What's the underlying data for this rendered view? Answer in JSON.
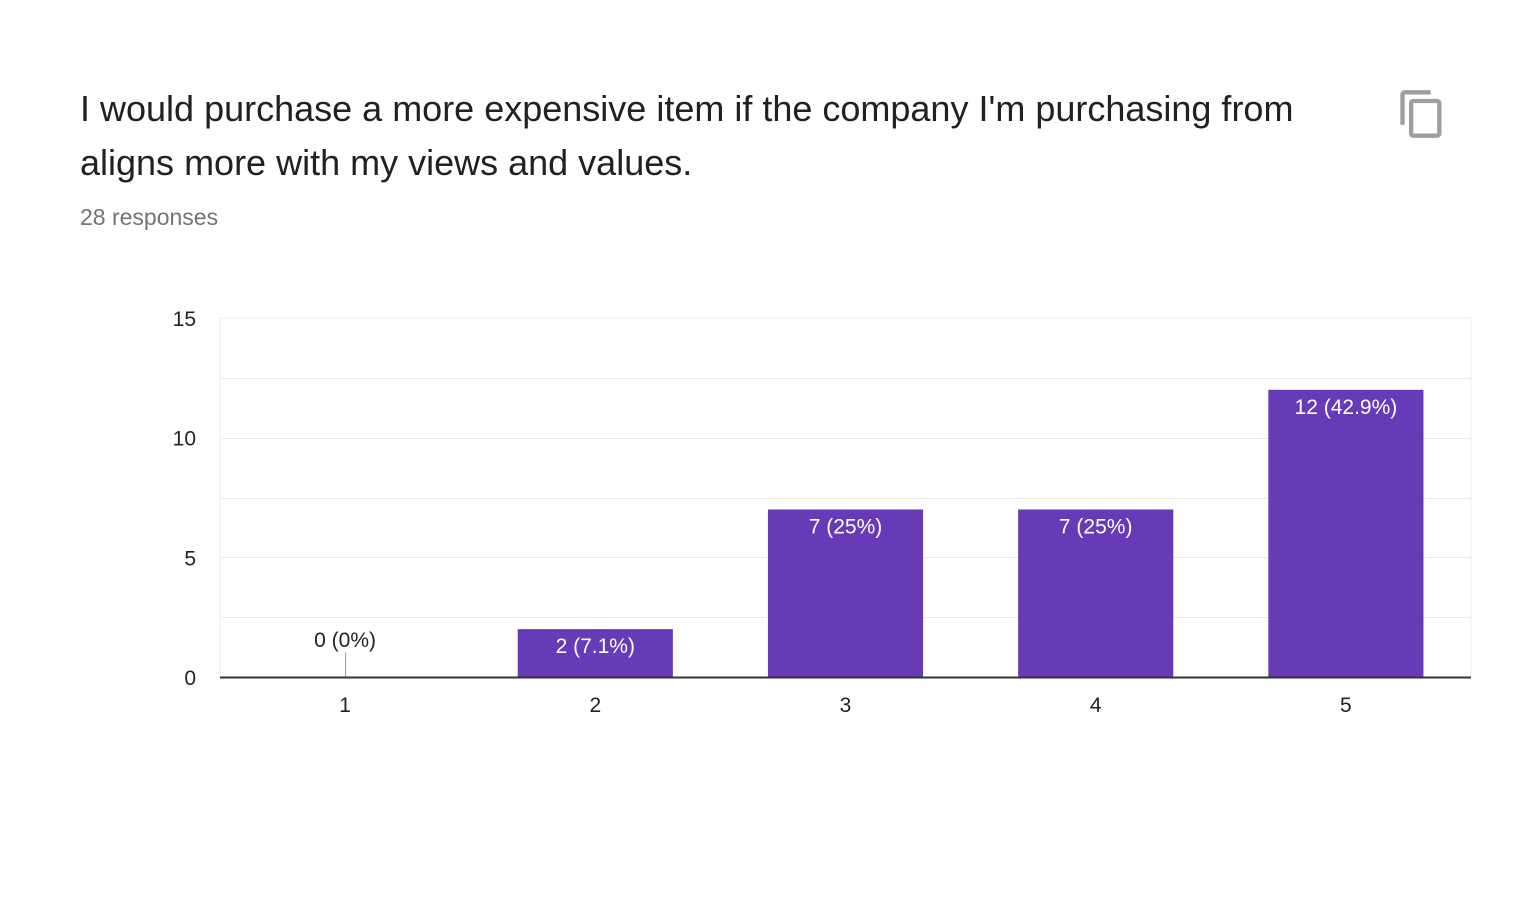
{
  "question": {
    "title": "I would purchase a more expensive item if the company I'm purchasing from aligns more with my views and values.",
    "responses": "28 responses",
    "copy_icon": "copy-icon"
  },
  "colors": {
    "bar": "#673ab7",
    "grid": "#ebebeb",
    "axis": "#333333",
    "text": "#222222",
    "label_inside": "#ffffff"
  },
  "chart_data": {
    "type": "bar",
    "categories": [
      "1",
      "2",
      "3",
      "4",
      "5"
    ],
    "values": [
      0,
      2,
      7,
      7,
      12
    ],
    "data_labels": [
      "0 (0%)",
      "2 (7.1%)",
      "7 (25%)",
      "7 (25%)",
      "12 (42.9%)"
    ],
    "yticks": [
      "0",
      "5",
      "10",
      "15"
    ],
    "ylim": [
      0,
      15
    ],
    "xlabel": "",
    "ylabel": "",
    "grid": true,
    "legend": "none"
  }
}
